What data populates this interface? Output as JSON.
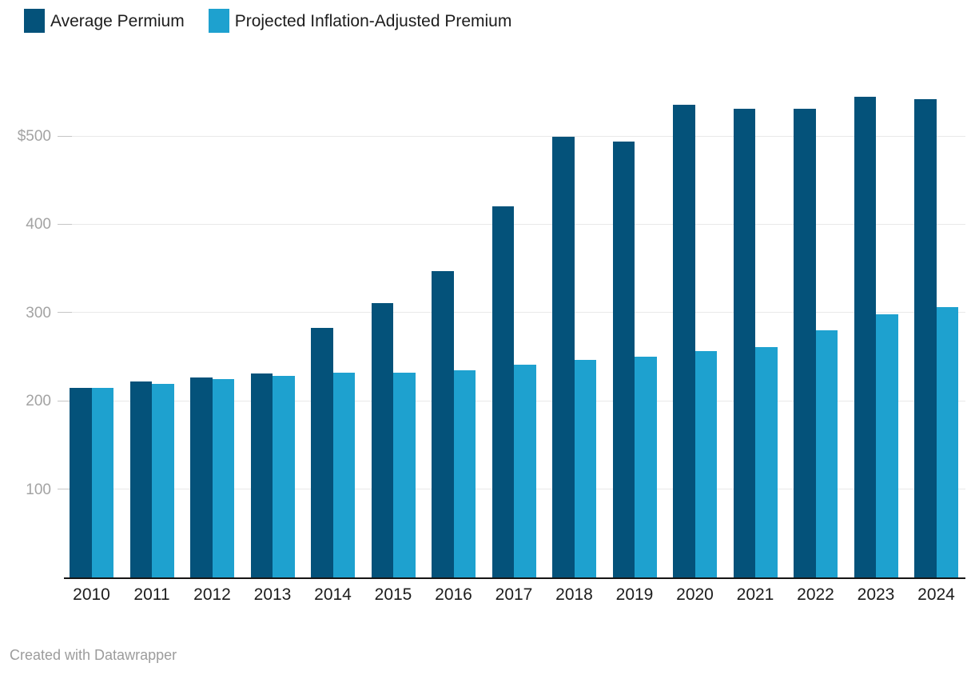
{
  "legend": {
    "items": [
      {
        "label": "Average Permium",
        "color": "#04527a"
      },
      {
        "label": "Projected Inflation-Adjusted Premium",
        "color": "#1ea1cf"
      }
    ]
  },
  "chart_data": {
    "type": "bar",
    "title": "",
    "xlabel": "",
    "ylabel": "",
    "categories": [
      "2010",
      "2011",
      "2012",
      "2013",
      "2014",
      "2015",
      "2016",
      "2017",
      "2018",
      "2019",
      "2020",
      "2021",
      "2022",
      "2023",
      "2024"
    ],
    "series": [
      {
        "name": "Average Permium",
        "color": "#04527a",
        "values": [
          215,
          222,
          226,
          231,
          283,
          311,
          347,
          420,
          499,
          494,
          535,
          531,
          531,
          544,
          542
        ]
      },
      {
        "name": "Projected Inflation-Adjusted Premium",
        "color": "#1ea1cf",
        "values": [
          215,
          219,
          225,
          228,
          232,
          232,
          235,
          241,
          246,
          250,
          256,
          261,
          280,
          298,
          306
        ]
      }
    ],
    "yticks": [
      {
        "value": 100,
        "label": "100"
      },
      {
        "value": 200,
        "label": "200"
      },
      {
        "value": 300,
        "label": "300"
      },
      {
        "value": 400,
        "label": "400"
      },
      {
        "value": 500,
        "label": "$500"
      }
    ],
    "ylim": [
      0,
      548
    ],
    "grid": "horizontal",
    "legend_position": "top"
  },
  "footer": {
    "credit": "Created with Datawrapper"
  }
}
